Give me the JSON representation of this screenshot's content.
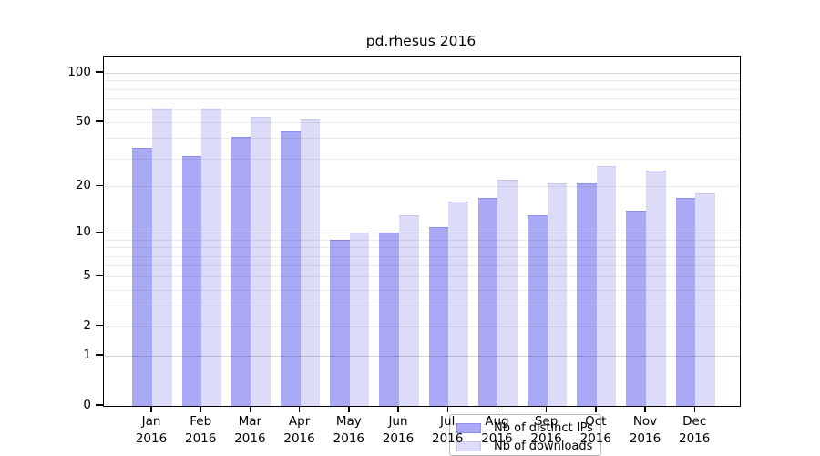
{
  "title": "pd.rhesus 2016",
  "chart_data": {
    "type": "bar",
    "title": "pd.rhesus 2016",
    "categories": [
      "Jan",
      "Feb",
      "Mar",
      "Apr",
      "May",
      "Jun",
      "Jul",
      "Aug",
      "Sep",
      "Oct",
      "Nov",
      "Dec"
    ],
    "year_label": "2016",
    "series": [
      {
        "name": "Nb of distinct IPs",
        "color": "#a9a9f6",
        "border_color": "#8d8dec",
        "values": [
          35,
          31,
          41,
          44,
          9,
          10,
          11,
          17,
          13,
          21,
          14,
          17
        ]
      },
      {
        "name": "Nb of downloads",
        "color": "#dcdcf8",
        "border_color": "#c7c7f0",
        "values": [
          61,
          61,
          54,
          52,
          10,
          13,
          16,
          22,
          21,
          27,
          25,
          18
        ]
      }
    ],
    "xlabel": "",
    "ylabel": "",
    "scale": "log1p",
    "ylim": [
      0,
      126
    ],
    "y_ticks": [
      0,
      1,
      2,
      5,
      10,
      20,
      50,
      100
    ],
    "grid": true,
    "gridlines_minor": [
      2,
      3,
      4,
      5,
      6,
      7,
      8,
      9,
      20,
      30,
      40,
      50,
      60,
      70,
      80,
      90
    ],
    "gridlines_major": [
      1,
      10,
      100
    ],
    "grid_minor_color": "rgba(0,0,0,0.075)",
    "grid_major_color": "rgba(0,0,0,0.17)",
    "legend_position": "bottom-center",
    "frame_color": "#000000",
    "background_color": "#ffffff"
  }
}
